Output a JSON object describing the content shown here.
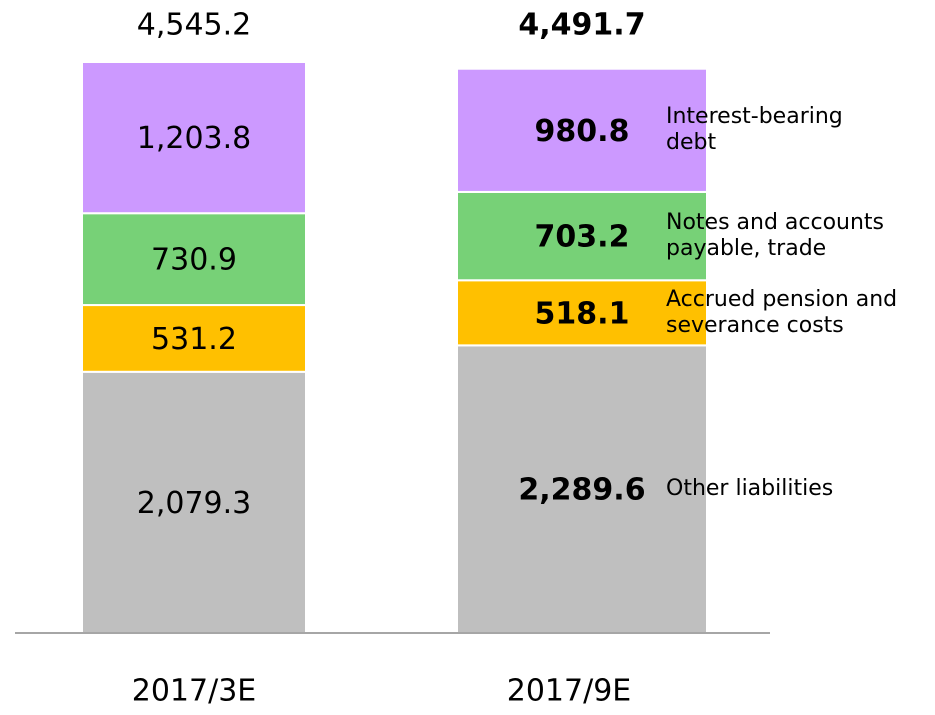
{
  "chart_data": {
    "type": "stacked-bar",
    "categories": [
      "2017/3E",
      "2017/9E"
    ],
    "series": [
      {
        "name": "Other liabilities",
        "color": "#bfbfbf",
        "values": [
          2079.3,
          2289.6
        ],
        "value_labels": [
          "2,079.3",
          "2,289.6"
        ]
      },
      {
        "name": "Accrued pension and severance costs",
        "color": "#ffc000",
        "values": [
          531.2,
          518.1
        ],
        "value_labels": [
          "531.2",
          "518.1"
        ]
      },
      {
        "name": "Notes and accounts payable, trade",
        "color": "#77d177",
        "values": [
          730.9,
          703.2
        ],
        "value_labels": [
          "730.9",
          "703.2"
        ]
      },
      {
        "name": "Interest-bearing debt",
        "color": "#cc99ff",
        "values": [
          1203.8,
          980.8
        ],
        "value_labels": [
          "1,203.8",
          "980.8"
        ]
      }
    ],
    "totals": [
      4545.2,
      4491.7
    ],
    "total_labels": [
      "4,545.2",
      "4,491.7"
    ]
  }
}
